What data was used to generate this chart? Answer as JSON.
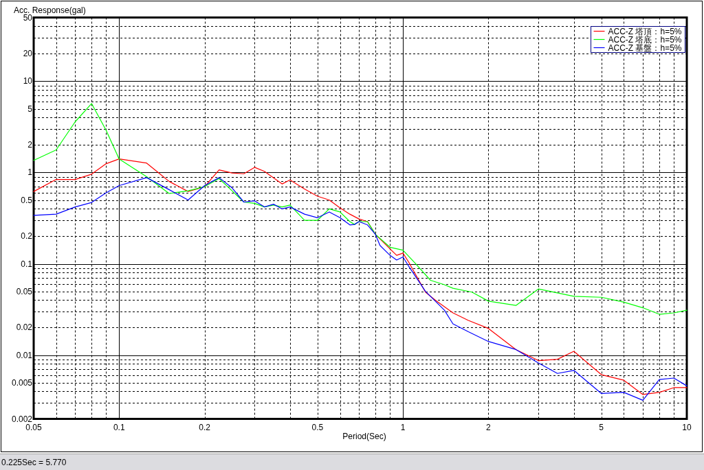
{
  "chart_data": {
    "type": "line",
    "xlabel": "Period(Sec)",
    "ylabel": "Acc. Response(gal)",
    "annotations": [
      "0.225Sec = 5.770"
    ],
    "log": "xy",
    "grid": true,
    "legend": "top right",
    "xlim": [
      0.05,
      10
    ],
    "ylim": [
      0.002,
      50
    ],
    "xticks": [
      0.05,
      {
        "value": 0.06,
        "label": null
      },
      {
        "value": 0.07,
        "label": null
      },
      {
        "value": 0.08,
        "label": null
      },
      {
        "value": 0.09,
        "label": null
      },
      0.1,
      0.2,
      {
        "value": 0.3,
        "label": null
      },
      {
        "value": 0.4,
        "label": null
      },
      0.5,
      {
        "value": 0.6,
        "label": null
      },
      {
        "value": 0.7,
        "label": null
      },
      {
        "value": 0.8,
        "label": null
      },
      {
        "value": 0.9,
        "label": null
      },
      1,
      2,
      {
        "value": 3,
        "label": null
      },
      {
        "value": 4,
        "label": null
      },
      5,
      {
        "value": 6,
        "label": null
      },
      {
        "value": 7,
        "label": null
      },
      {
        "value": 8,
        "label": null
      },
      {
        "value": 9,
        "label": null
      },
      10
    ],
    "yticks": [
      0.002,
      {
        "value": 0.003,
        "label": null
      },
      {
        "value": 0.004,
        "label": null
      },
      0.005,
      {
        "value": 0.006,
        "label": null
      },
      {
        "value": 0.007,
        "label": null
      },
      {
        "value": 0.008,
        "label": null
      },
      {
        "value": 0.009,
        "label": null
      },
      0.01,
      0.02,
      {
        "value": 0.03,
        "label": null
      },
      {
        "value": 0.04,
        "label": null
      },
      0.05,
      {
        "value": 0.06,
        "label": null
      },
      {
        "value": 0.07,
        "label": null
      },
      {
        "value": 0.08,
        "label": null
      },
      {
        "value": 0.09,
        "label": null
      },
      0.1,
      0.2,
      {
        "value": 0.3,
        "label": null
      },
      {
        "value": 0.4,
        "label": null
      },
      0.5,
      {
        "value": 0.6,
        "label": null
      },
      {
        "value": 0.7,
        "label": null
      },
      {
        "value": 0.8,
        "label": null
      },
      {
        "value": 0.9,
        "label": null
      },
      1,
      2,
      {
        "value": 3,
        "label": null
      },
      {
        "value": 4,
        "label": null
      },
      5,
      {
        "value": 6,
        "label": null
      },
      {
        "value": 7,
        "label": null
      },
      {
        "value": 8,
        "label": null
      },
      {
        "value": 9,
        "label": null
      },
      10,
      20,
      {
        "value": 30,
        "label": null
      },
      {
        "value": 40,
        "label": null
      },
      50
    ],
    "series": [
      {
        "name": "ACC-Z 塔頂：h=5%",
        "color": "#ff0000",
        "x": [
          0.05,
          0.06,
          0.07,
          0.08,
          0.09,
          0.1,
          0.125,
          0.15,
          0.175,
          0.2,
          0.225,
          0.25,
          0.275,
          0.3,
          0.325,
          0.375,
          0.4,
          0.45,
          0.5,
          0.55,
          0.6,
          0.65,
          0.7,
          0.75,
          0.8,
          0.9,
          0.95,
          1,
          1.05,
          1.2,
          1.3,
          1.5,
          1.7,
          2,
          2.5,
          3,
          3.5,
          4,
          5,
          6,
          7,
          8,
          9,
          10
        ],
        "values": [
          0.62,
          0.84,
          0.84,
          0.96,
          1.25,
          1.41,
          1.27,
          0.8,
          0.62,
          0.7,
          1.07,
          0.99,
          0.97,
          1.14,
          1.03,
          0.75,
          0.83,
          0.66,
          0.55,
          0.5,
          0.41,
          0.35,
          0.31,
          0.29,
          0.21,
          0.146,
          0.124,
          0.131,
          0.103,
          0.049,
          0.04,
          0.029,
          0.024,
          0.0196,
          0.0115,
          0.0087,
          0.009,
          0.011,
          0.0061,
          0.0053,
          0.0037,
          0.0039,
          0.0044,
          0.0044
        ]
      },
      {
        "name": "ACC-Z 塔底：h=5%",
        "color": "#00ff00",
        "x": [
          0.05,
          0.06,
          0.07,
          0.08,
          0.09,
          0.1,
          0.125,
          0.15,
          0.175,
          0.2,
          0.225,
          0.25,
          0.275,
          0.3,
          0.325,
          0.35,
          0.375,
          0.4,
          0.45,
          0.5,
          0.55,
          0.6,
          0.65,
          0.675,
          0.7,
          0.75,
          0.8,
          0.9,
          1,
          1.1,
          1.25,
          1.4,
          1.5,
          1.75,
          2,
          2.5,
          3,
          4,
          5,
          6,
          7,
          8,
          9,
          10
        ],
        "values": [
          1.36,
          1.77,
          3.6,
          5.7,
          2.9,
          1.41,
          0.9,
          0.59,
          0.63,
          0.7,
          0.86,
          0.63,
          0.475,
          0.46,
          0.42,
          0.44,
          0.42,
          0.44,
          0.3,
          0.3,
          0.4,
          0.37,
          0.29,
          0.27,
          0.29,
          0.29,
          0.21,
          0.152,
          0.141,
          0.103,
          0.066,
          0.059,
          0.054,
          0.049,
          0.039,
          0.035,
          0.053,
          0.044,
          0.043,
          0.038,
          0.033,
          0.028,
          0.029,
          0.031
        ]
      },
      {
        "name": "ACC-Z 基盤：h=5%",
        "color": "#0000ff",
        "x": [
          0.05,
          0.06,
          0.07,
          0.08,
          0.09,
          0.1,
          0.125,
          0.15,
          0.175,
          0.2,
          0.225,
          0.25,
          0.275,
          0.3,
          0.325,
          0.35,
          0.375,
          0.4,
          0.45,
          0.5,
          0.55,
          0.6,
          0.65,
          0.675,
          0.7,
          0.75,
          0.8,
          0.83,
          0.9,
          0.95,
          1,
          1.05,
          1.2,
          1.4,
          1.5,
          1.7,
          2,
          2.5,
          3,
          3.5,
          4,
          5,
          6,
          7,
          8,
          9,
          10
        ],
        "values": [
          0.34,
          0.35,
          0.42,
          0.47,
          0.6,
          0.72,
          0.88,
          0.65,
          0.5,
          0.72,
          0.88,
          0.68,
          0.475,
          0.49,
          0.42,
          0.45,
          0.4,
          0.42,
          0.35,
          0.32,
          0.37,
          0.32,
          0.267,
          0.27,
          0.29,
          0.267,
          0.21,
          0.159,
          0.124,
          0.11,
          0.119,
          0.093,
          0.05,
          0.031,
          0.022,
          0.018,
          0.0141,
          0.0115,
          0.0082,
          0.0063,
          0.0068,
          0.0038,
          0.0039,
          0.0032,
          0.0054,
          0.0056,
          0.0046
        ]
      }
    ]
  }
}
